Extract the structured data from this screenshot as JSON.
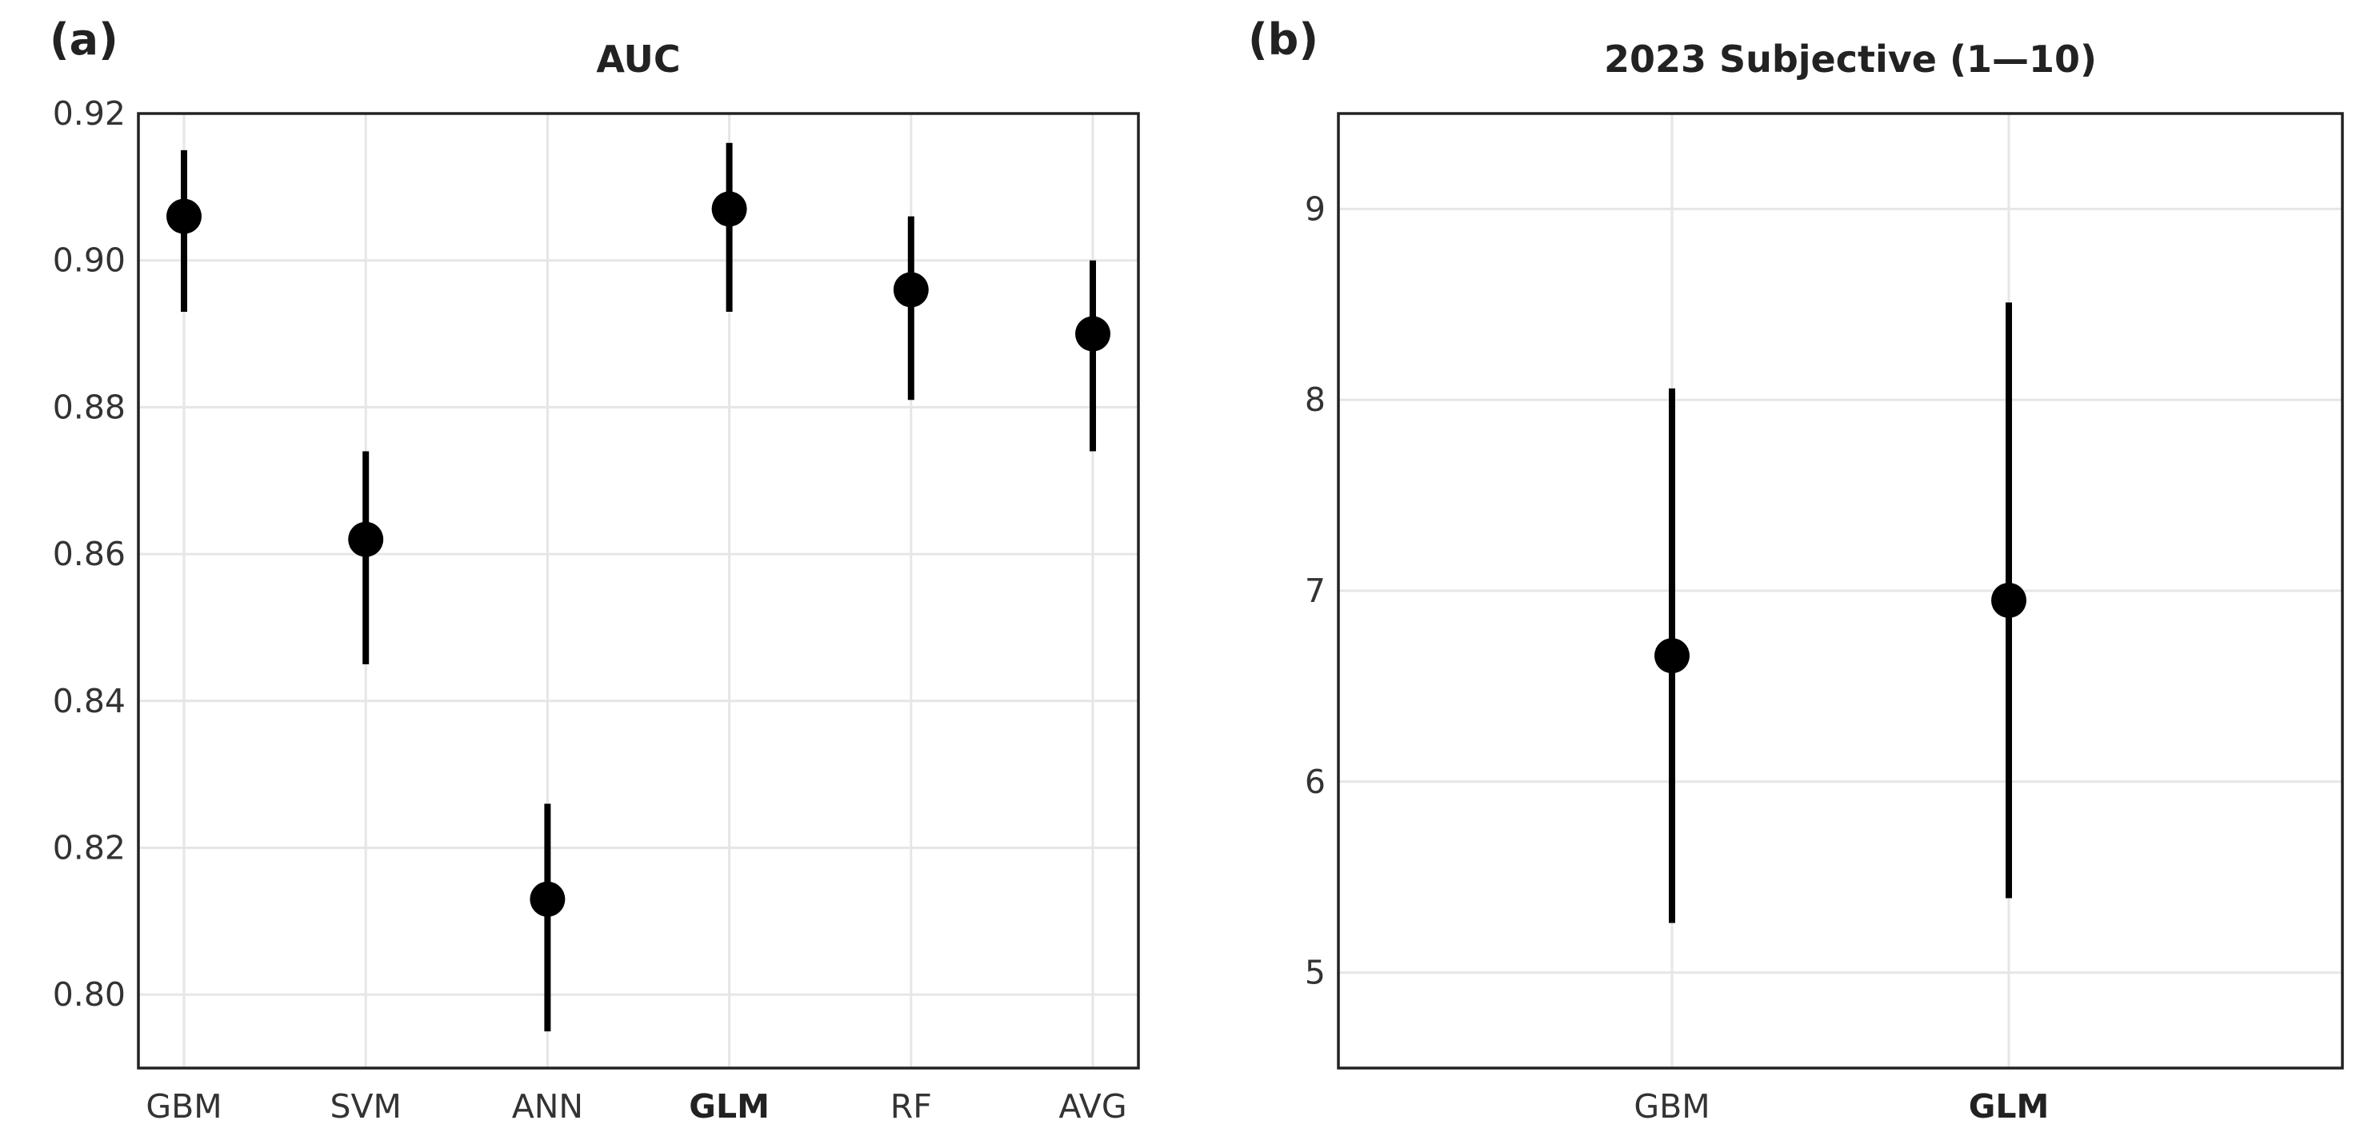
{
  "chart_data": [
    {
      "panel_label": "(a)",
      "type": "scatter",
      "title": "AUC",
      "xlabel": "",
      "ylabel": "",
      "categories": [
        "GBM",
        "SVM",
        "ANN",
        "GLM",
        "RF",
        "AVG"
      ],
      "bold_categories": [
        "GLM"
      ],
      "values": [
        0.906,
        0.862,
        0.813,
        0.907,
        0.896,
        0.89
      ],
      "err_low": [
        0.893,
        0.845,
        0.795,
        0.893,
        0.881,
        0.874
      ],
      "err_high": [
        0.915,
        0.874,
        0.826,
        0.916,
        0.906,
        0.9
      ],
      "ylim": [
        0.79,
        0.92
      ],
      "yticks": [
        0.8,
        0.82,
        0.84,
        0.86,
        0.88,
        0.9,
        0.92
      ],
      "ytick_labels": [
        "0.80",
        "0.82",
        "0.84",
        "0.86",
        "0.88",
        "0.90",
        "0.92"
      ],
      "grid": true,
      "marker_color": "#000000"
    },
    {
      "panel_label": "(b)",
      "type": "scatter",
      "title": "2023 Subjective (1—10)",
      "xlabel": "",
      "ylabel": "",
      "categories": [
        "GBM",
        "GLM"
      ],
      "bold_categories": [
        "GLM"
      ],
      "values": [
        6.66,
        6.95
      ],
      "err_low": [
        5.26,
        5.39
      ],
      "err_high": [
        8.06,
        8.51
      ],
      "ylim": [
        4.5,
        9.5
      ],
      "yticks": [
        5,
        6,
        7,
        8,
        9
      ],
      "ytick_labels": [
        "5",
        "6",
        "7",
        "8",
        "9"
      ],
      "grid": true,
      "marker_color": "#000000"
    }
  ]
}
